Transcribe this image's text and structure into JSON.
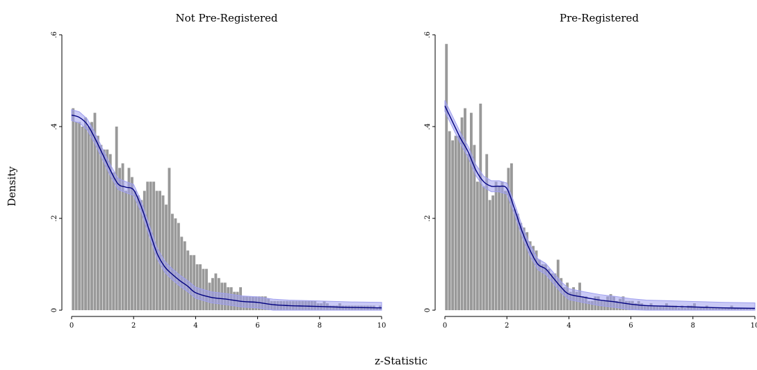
{
  "chart_data": {
    "type": "bar",
    "ylabel": "Density",
    "xlabel": "z-Statistic",
    "xlim": [
      0,
      10
    ],
    "ylim": [
      0,
      0.6
    ],
    "x_ticks": [
      "0",
      "2",
      "4",
      "6",
      "8",
      "10"
    ],
    "y_ticks": [
      "0",
      ".2",
      ".4",
      ".6"
    ],
    "bin_width": 0.1,
    "colors": {
      "bars": "#999999",
      "curve": "#000080",
      "band": "#9f9fef"
    },
    "panels": [
      {
        "title": "Not Pre-Registered",
        "bars": [
          0.44,
          0.41,
          0.41,
          0.4,
          0.42,
          0.4,
          0.41,
          0.43,
          0.38,
          0.36,
          0.35,
          0.35,
          0.34,
          0.3,
          0.4,
          0.31,
          0.32,
          0.26,
          0.31,
          0.29,
          0.26,
          0.25,
          0.24,
          0.26,
          0.28,
          0.28,
          0.28,
          0.26,
          0.26,
          0.25,
          0.23,
          0.31,
          0.21,
          0.2,
          0.19,
          0.16,
          0.15,
          0.13,
          0.12,
          0.12,
          0.1,
          0.1,
          0.09,
          0.09,
          0.06,
          0.07,
          0.08,
          0.07,
          0.06,
          0.06,
          0.05,
          0.05,
          0.04,
          0.04,
          0.05,
          0.03,
          0.03,
          0.03,
          0.03,
          0.03,
          0.03,
          0.03,
          0.03,
          0.025,
          0.02,
          0.02,
          0.02,
          0.02,
          0.02,
          0.02,
          0.02,
          0.02,
          0.02,
          0.02,
          0.02,
          0.02,
          0.02,
          0.02,
          0.02,
          0.015,
          0.015,
          0.02,
          0.015,
          0.01,
          0.01,
          0.01,
          0.015,
          0.01,
          0.01,
          0.01,
          0.01,
          0.01,
          0.01,
          0.01,
          0.01,
          0.01,
          0.01,
          0.01,
          0.005,
          0.01,
          0.005,
          0.005,
          0.01,
          0.005,
          0.005,
          0.005,
          0.005,
          0.005,
          0.005,
          0.005,
          0.005,
          0.005,
          0.015,
          0.005,
          0.005,
          0.005,
          0.005,
          0.005,
          0.005,
          0.005,
          0.005,
          0.005,
          0.005,
          0.005,
          0.005,
          0.005,
          0.005,
          0.005,
          0.005,
          0.005,
          0.005,
          0.005,
          0.005,
          0.005,
          0.005,
          0.005,
          0.005,
          0.01,
          0.005,
          0.005,
          0.005,
          0.005,
          0.005,
          0.005,
          0.005,
          0.005,
          0.005,
          0.005,
          0.005,
          0.005,
          0.005,
          0.005,
          0.005,
          0.005,
          0.005,
          0.005,
          0.005,
          0.005,
          0.005,
          0.005,
          0.005,
          0.005
        ],
        "curve_x": [
          0,
          0.25,
          0.5,
          0.75,
          1,
          1.25,
          1.5,
          1.75,
          2,
          2.25,
          2.5,
          2.75,
          3,
          3.25,
          3.5,
          3.75,
          4,
          4.5,
          5,
          5.5,
          6,
          6.5,
          7,
          7.5,
          8,
          9,
          10
        ],
        "curve_y": [
          0.425,
          0.42,
          0.405,
          0.375,
          0.34,
          0.305,
          0.275,
          0.268,
          0.262,
          0.225,
          0.175,
          0.125,
          0.095,
          0.078,
          0.064,
          0.052,
          0.038,
          0.028,
          0.024,
          0.019,
          0.017,
          0.012,
          0.01,
          0.009,
          0.008,
          0.006,
          0.005
        ]
      },
      {
        "title": "Pre-Registered",
        "bars": [
          0.58,
          0.39,
          0.37,
          0.38,
          0.38,
          0.42,
          0.44,
          0.34,
          0.43,
          0.36,
          0.28,
          0.45,
          0.27,
          0.34,
          0.24,
          0.25,
          0.28,
          0.27,
          0.28,
          0.26,
          0.31,
          0.32,
          0.22,
          0.21,
          0.19,
          0.18,
          0.17,
          0.15,
          0.14,
          0.13,
          0.11,
          0.1,
          0.1,
          0.09,
          0.08,
          0.08,
          0.11,
          0.07,
          0.05,
          0.06,
          0.04,
          0.05,
          0.04,
          0.06,
          0.03,
          0.03,
          0.02,
          0.02,
          0.03,
          0.03,
          0.02,
          0.02,
          0.03,
          0.035,
          0.03,
          0.02,
          0.025,
          0.03,
          0.02,
          0.02,
          0.02,
          0.015,
          0.02,
          0.015,
          0.01,
          0.01,
          0.015,
          0.01,
          0.01,
          0.01,
          0.01,
          0.015,
          0.01,
          0.01,
          0.01,
          0.005,
          0.01,
          0.005,
          0.01,
          0.01,
          0.015,
          0.005,
          0.005,
          0.005,
          0.01,
          0.005,
          0.005,
          0.005,
          0.005,
          0.005,
          0.005,
          0.005,
          0.01,
          0.005,
          0.005,
          0.005,
          0.005,
          0.005,
          0.005,
          0.005
        ],
        "curve_x": [
          0,
          0.25,
          0.5,
          0.75,
          1,
          1.25,
          1.5,
          1.75,
          2,
          2.25,
          2.5,
          2.75,
          3,
          3.25,
          3.5,
          3.75,
          4,
          4.5,
          5,
          5.5,
          6,
          6.5,
          7,
          7.5,
          8,
          9,
          10
        ],
        "curve_y": [
          0.445,
          0.41,
          0.375,
          0.345,
          0.305,
          0.28,
          0.27,
          0.27,
          0.265,
          0.22,
          0.17,
          0.13,
          0.1,
          0.09,
          0.07,
          0.05,
          0.035,
          0.028,
          0.022,
          0.018,
          0.013,
          0.01,
          0.009,
          0.008,
          0.007,
          0.005,
          0.004
        ]
      }
    ]
  }
}
